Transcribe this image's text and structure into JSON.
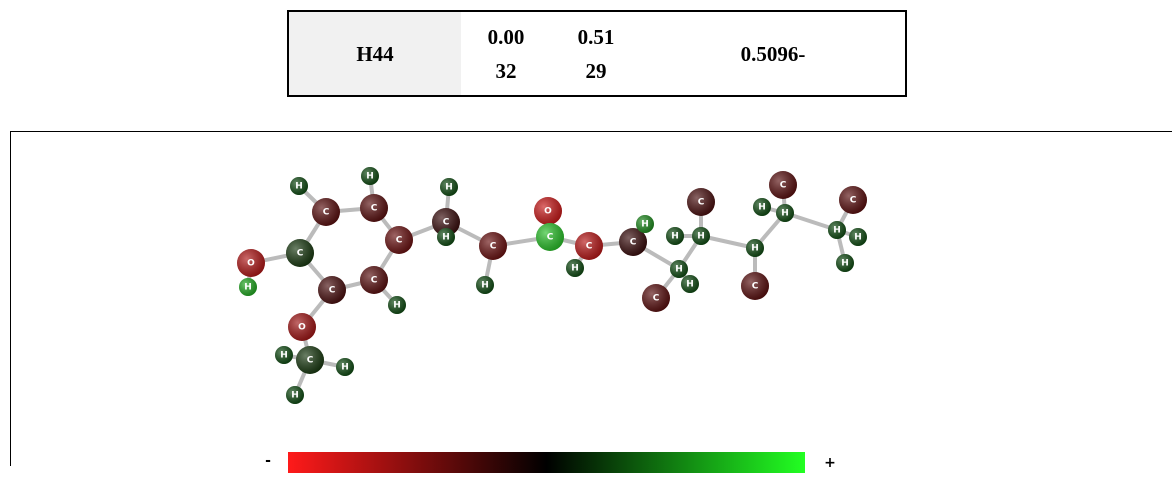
{
  "table": {
    "rows": [
      [
        "H44",
        "0.0032",
        "0.5129",
        "0.5096-"
      ]
    ]
  },
  "molecule": {
    "atoms": [
      {
        "label": "H",
        "color": "#0f4a12"
      },
      {
        "label": "C",
        "color": "#5a1010"
      },
      {
        "label": "C",
        "color": "#5a1010"
      },
      {
        "label": "H",
        "color": "#0f4a12"
      },
      {
        "label": "C",
        "color": "#1a3a12"
      },
      {
        "label": "O",
        "color": "#b01818"
      },
      {
        "label": "H",
        "color": "#22a822"
      },
      {
        "label": "C",
        "color": "#6a1212"
      },
      {
        "label": "C",
        "color": "#4a1010"
      },
      {
        "label": "C",
        "color": "#5a1010"
      },
      {
        "label": "H",
        "color": "#0f4a12"
      },
      {
        "label": "O",
        "color": "#a01616"
      },
      {
        "label": "C",
        "color": "#1a3a12"
      },
      {
        "label": "H",
        "color": "#0f4a12"
      },
      {
        "label": "H",
        "color": "#0f4a12"
      },
      {
        "label": "H",
        "color": "#0f4a12"
      },
      {
        "label": "C",
        "color": "#3a0e0e"
      },
      {
        "label": "H",
        "color": "#0f4a12"
      },
      {
        "label": "H",
        "color": "#0f4a12"
      },
      {
        "label": "C",
        "color": "#6a1212"
      },
      {
        "label": "H",
        "color": "#0f4a12"
      },
      {
        "label": "O",
        "color": "#c81a1a"
      },
      {
        "label": "C",
        "color": "#2ac02a"
      },
      {
        "label": "C",
        "color": "#b81818"
      },
      {
        "label": "H",
        "color": "#0f4a12"
      },
      {
        "label": "C",
        "color": "#3a0e0e"
      },
      {
        "label": "H",
        "color": "#1f8a1f"
      },
      {
        "label": "H",
        "color": "#0f4a12"
      },
      {
        "label": "C",
        "color": "#4a1010"
      },
      {
        "label": "H",
        "color": "#0f4a12"
      },
      {
        "label": "C",
        "color": "#5a1010"
      },
      {
        "label": "H",
        "color": "#0f4a12"
      },
      {
        "label": "H",
        "color": "#0f4a12"
      },
      {
        "label": "C",
        "color": "#5a1010"
      },
      {
        "label": "H",
        "color": "#0f4a12"
      },
      {
        "label": "C",
        "color": "#5a1010"
      },
      {
        "label": "H",
        "color": "#0f4a12"
      },
      {
        "label": "H",
        "color": "#0f4a12"
      },
      {
        "label": "C",
        "color": "#5a1010"
      },
      {
        "label": "H",
        "color": "#0f4a12"
      },
      {
        "label": "H",
        "color": "#0f4a12"
      },
      {
        "label": "H",
        "color": "#0f4a12"
      }
    ],
    "legend": {
      "min": "-",
      "max": "+"
    }
  }
}
